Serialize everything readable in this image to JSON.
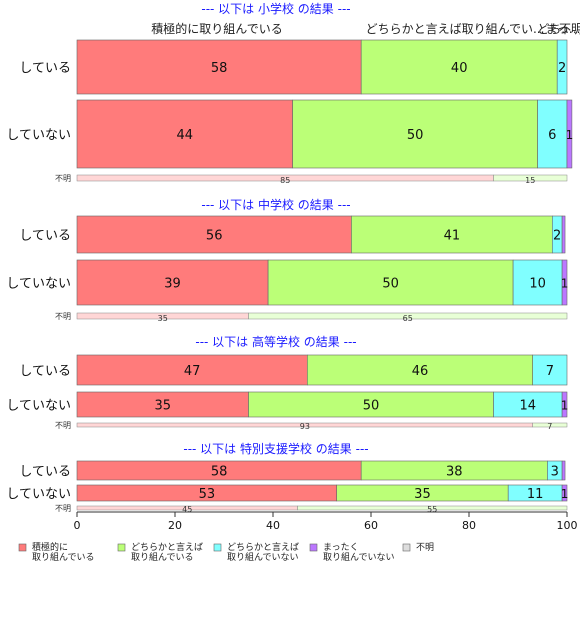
{
  "chart_data": {
    "type": "bar",
    "orientation": "horizontal",
    "stacked": true,
    "xlim": [
      0,
      100
    ],
    "xticks": [
      0,
      20,
      40,
      60,
      80,
      100
    ],
    "legend_position": "bottom",
    "categories": [
      {
        "key": "c1",
        "label": "積極的に\n取り組んでいる",
        "color": "#ff7b7b"
      },
      {
        "key": "c2",
        "label": "どちらかと言えば\n取り組んでいる",
        "color": "#bbff77"
      },
      {
        "key": "c3",
        "label": "どちらかと言えば\n取り組んでいない",
        "color": "#80ffff"
      },
      {
        "key": "c4",
        "label": "まったく\n取り組んでいない",
        "color": "#bb77ff"
      },
      {
        "key": "c5",
        "label": "不明",
        "color": "#dddddd"
      }
    ],
    "top_labels": [
      {
        "text": "積極的に取り組んでいる"
      },
      {
        "text": "どちらかと言えば取り組んでい..."
      },
      {
        "text": "どち..."
      },
      {
        "text": "まっ..."
      },
      {
        "text": "不明"
      }
    ],
    "panels": [
      {
        "title": "--- 以下は 小学校 の結果 ---",
        "rows": [
          {
            "label": "している",
            "values": [
              58,
              40,
              2,
              0,
              0
            ]
          },
          {
            "label": "していない",
            "values": [
              44,
              50,
              6,
              1,
              0
            ]
          }
        ],
        "missing": {
          "label": "不明",
          "values": [
            85,
            15
          ]
        }
      },
      {
        "title": "--- 以下は 中学校 の結果 ---",
        "rows": [
          {
            "label": "している",
            "values": [
              56,
              41,
              2,
              0.6,
              0
            ]
          },
          {
            "label": "していない",
            "values": [
              39,
              50,
              10,
              1,
              0
            ]
          }
        ],
        "missing": {
          "label": "不明",
          "values": [
            35,
            65
          ]
        }
      },
      {
        "title": "--- 以下は 高等学校 の結果 ---",
        "rows": [
          {
            "label": "している",
            "values": [
              47,
              46,
              7,
              0,
              0
            ]
          },
          {
            "label": "していない",
            "values": [
              35,
              50,
              14,
              1,
              0
            ]
          }
        ],
        "missing": {
          "label": "不明",
          "values": [
            93,
            7
          ]
        }
      },
      {
        "title": "--- 以下は 特別支援学校 の結果 ---",
        "rows": [
          {
            "label": "している",
            "values": [
              58,
              38,
              3,
              0.6,
              0
            ]
          },
          {
            "label": "していない",
            "values": [
              53,
              35,
              11,
              1,
              0
            ]
          }
        ],
        "missing": {
          "label": "不明",
          "values": [
            45,
            55
          ]
        }
      }
    ]
  }
}
